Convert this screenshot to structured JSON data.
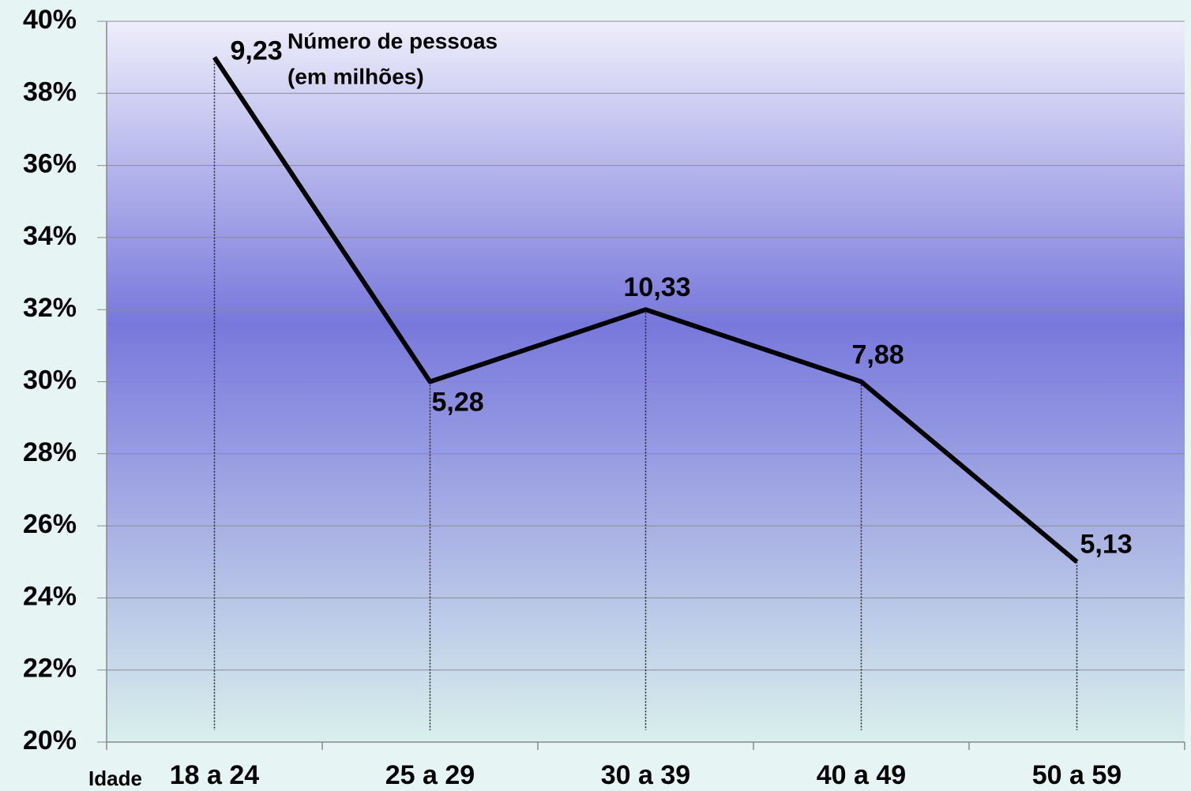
{
  "chart_data": {
    "type": "line",
    "x_label": "Idade",
    "categories": [
      "18 a 24",
      "25 a 29",
      "30 a 39",
      "40 a 49",
      "50 a 59"
    ],
    "series": [
      {
        "color": "#000000",
        "values": [
          39,
          30,
          32,
          30,
          25
        ]
      }
    ],
    "annotation": {
      "title": "Número de pessoas",
      "subtitle": "(em milhões)",
      "values": [
        9.23,
        5.28,
        10.33,
        7.88,
        5.13
      ],
      "value_labels": [
        "9,23",
        "5,28",
        "10,33",
        "7,88",
        "5,13"
      ]
    },
    "ylim": [
      20,
      40
    ],
    "yticks": [
      {
        "value": 20,
        "label": "20%"
      },
      {
        "value": 22,
        "label": "22%"
      },
      {
        "value": 24,
        "label": "24%"
      },
      {
        "value": 26,
        "label": "26%"
      },
      {
        "value": 28,
        "label": "28%"
      },
      {
        "value": 30,
        "label": "30%"
      },
      {
        "value": 32,
        "label": "32%"
      },
      {
        "value": 34,
        "label": "34%"
      },
      {
        "value": 36,
        "label": "36%"
      },
      {
        "value": 38,
        "label": "38%"
      },
      {
        "value": 40,
        "label": "40%"
      }
    ],
    "grid": true
  }
}
